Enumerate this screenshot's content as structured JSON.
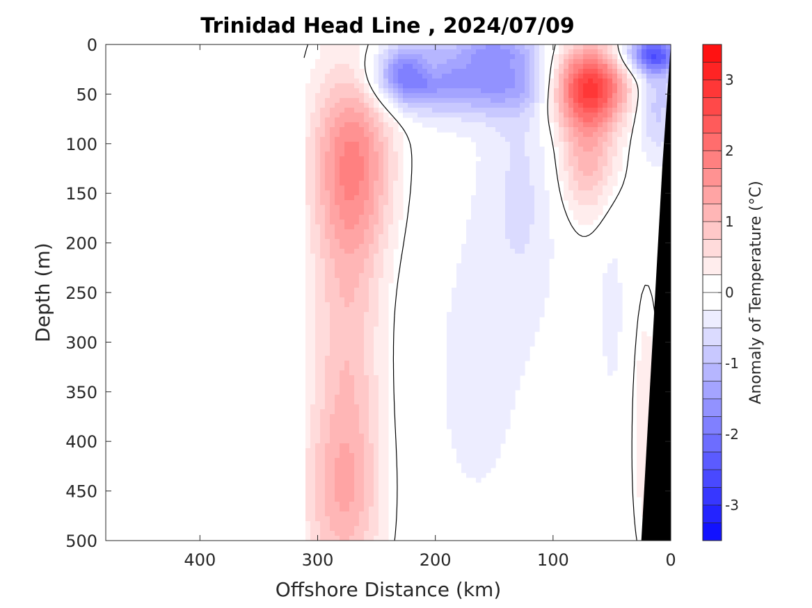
{
  "chart_data": {
    "type": "heatmap",
    "title": "Trinidad Head Line , 2024/07/09",
    "xlabel": "Offshore Distance (km)",
    "ylabel": "Depth (m)",
    "colorbar_label": "Anomaly of Temperature (°C)",
    "x_reversed": true,
    "y_reversed": true,
    "xlim": [
      0,
      480
    ],
    "ylim": [
      0,
      500
    ],
    "xticks": [
      400,
      300,
      200,
      100,
      0
    ],
    "xtick_labels": [
      "400",
      "300",
      "200",
      "100",
      "0"
    ],
    "yticks": [
      0,
      50,
      100,
      150,
      200,
      250,
      300,
      350,
      400,
      450,
      500
    ],
    "ytick_labels": [
      "0",
      "50",
      "100",
      "150",
      "200",
      "250",
      "300",
      "350",
      "400",
      "450",
      "500"
    ],
    "clim": [
      -3.5,
      3.5
    ],
    "contour_step": 0.25,
    "colorbar_ticks": [
      3,
      2,
      1,
      0,
      -1,
      -2,
      -3
    ],
    "colorbar_tick_labels": [
      "3",
      "2",
      "1",
      "0",
      "-1",
      "-2",
      "-3"
    ],
    "colors": {
      "positive": "#ff0000",
      "negative": "#0000ff",
      "neutral": "#ffffff",
      "bathymetry": "#000000",
      "zero_contour": "#000000"
    },
    "data_coverage_km": [
      0,
      312
    ],
    "features": [
      {
        "name": "warm core offshore",
        "center_km": 270,
        "center_depth_m": 100,
        "peak_anomaly": 1.6
      },
      {
        "name": "warm band at depth",
        "center_km": 275,
        "center_depth_m": 330,
        "peak_anomaly": 1.0
      },
      {
        "name": "cool upper layer",
        "center_km": 160,
        "center_depth_m": 35,
        "peak_anomaly": -1.5
      },
      {
        "name": "warm near-surface eddy",
        "center_km": 70,
        "center_depth_m": 40,
        "peak_anomaly": 2.9
      },
      {
        "name": "cool nearshore surface",
        "center_km": 15,
        "center_depth_m": 10,
        "peak_anomaly": -2.2
      },
      {
        "name": "weak cool column",
        "center_km": 160,
        "center_depth_m": 320,
        "peak_anomaly": -0.4
      },
      {
        "name": "weak warm nearshore slope",
        "center_km": 20,
        "center_depth_m": 380,
        "peak_anomaly": 0.4
      }
    ]
  }
}
